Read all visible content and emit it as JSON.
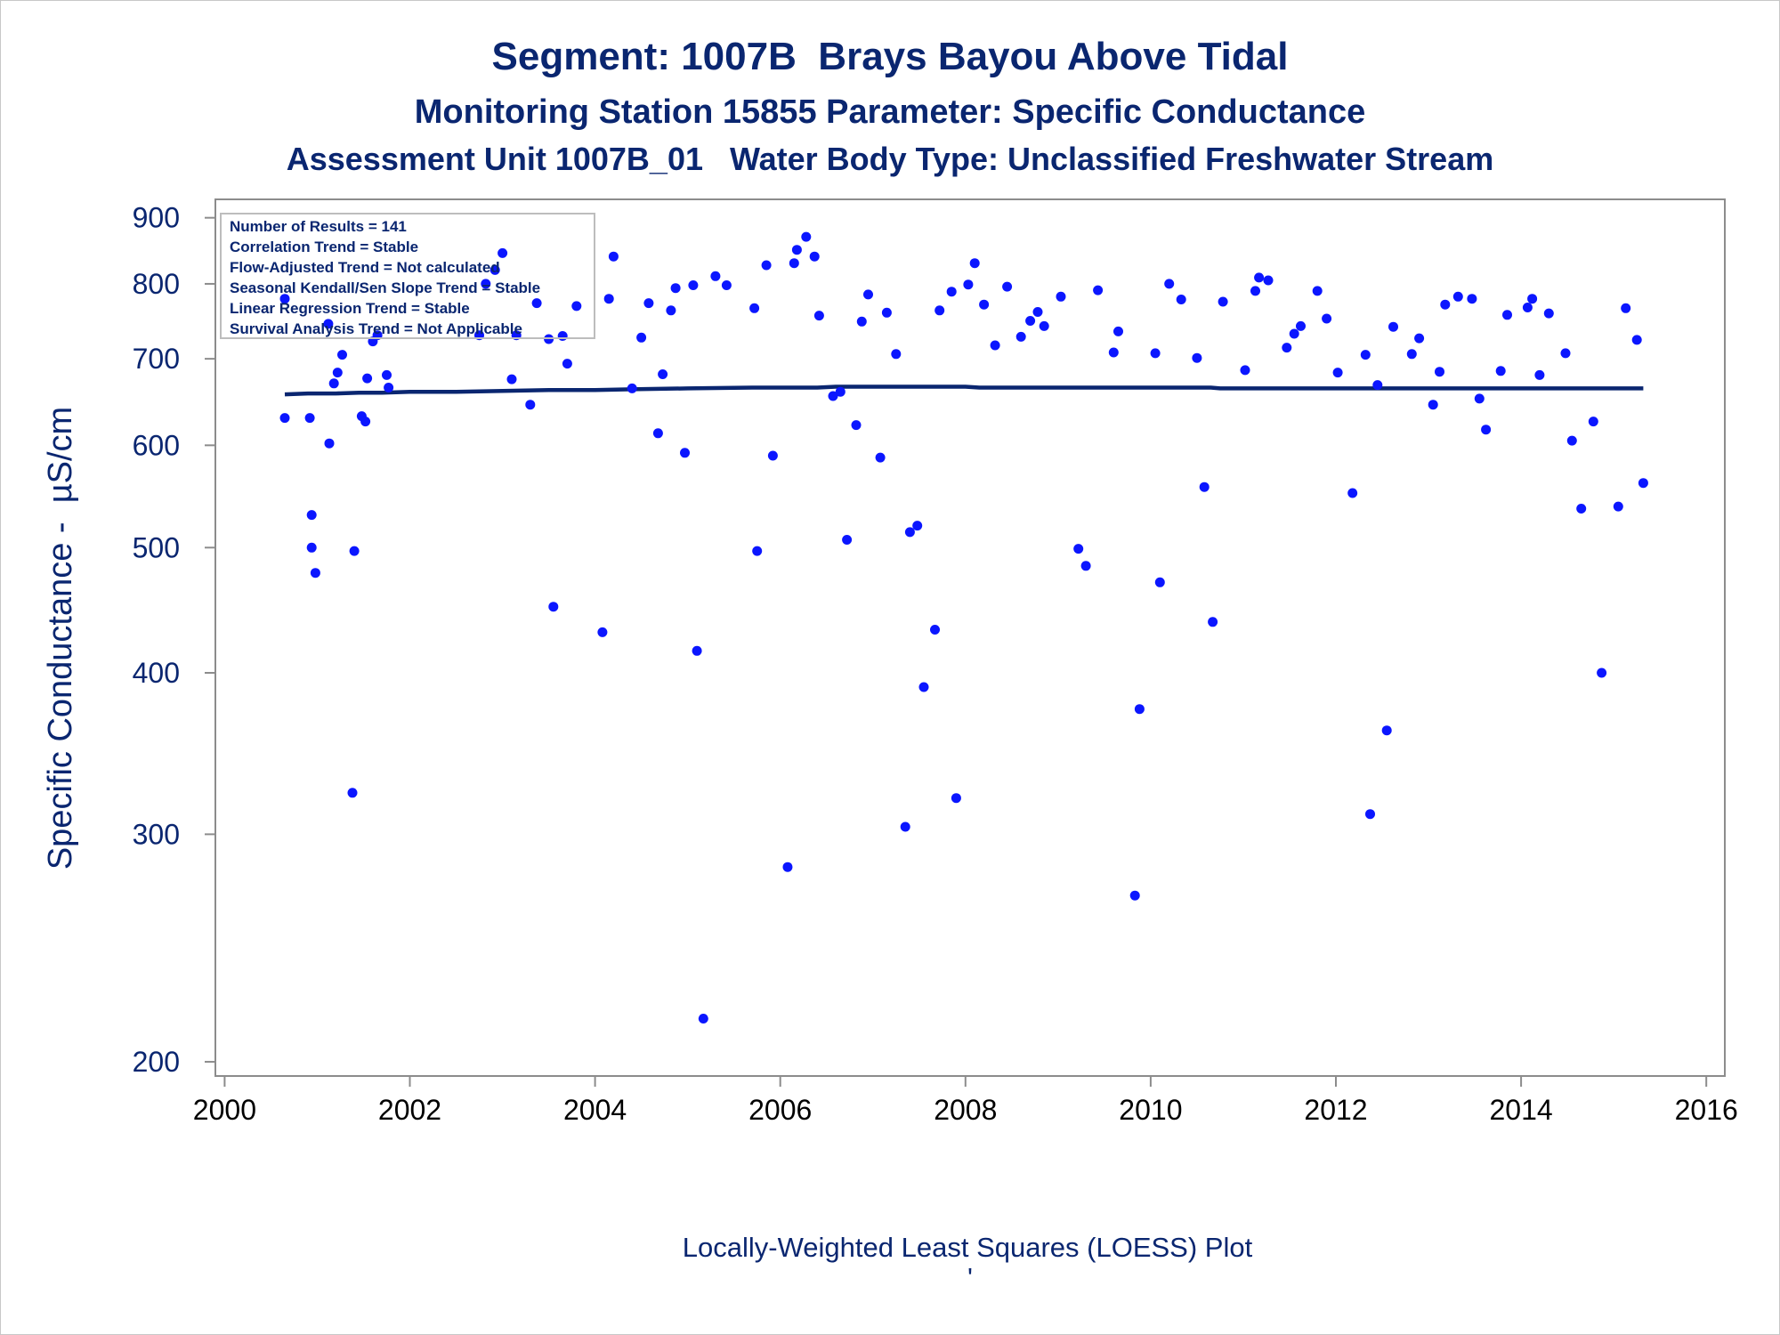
{
  "chart_data": {
    "type": "scatter",
    "title": "Segment: 1007B  Brays Bayou Above Tidal",
    "subtitle": "Monitoring Station 15855 Parameter: Specific Conductance",
    "subtitle2": "Assessment Unit 1007B_01   Water Body Type: Unclassified Freshwater Stream",
    "ylabel": "Specific Conductance -  µS/cm",
    "xlabel": "",
    "footnote": "Locally-Weighted Least Squares (LOESS) Plot",
    "footnote_mark": "'",
    "y_scale": "log",
    "ylim": [
      195,
      930
    ],
    "xlim": [
      1999.9,
      2016.2
    ],
    "y_ticks": [
      200,
      300,
      400,
      500,
      600,
      700,
      800,
      900
    ],
    "x_ticks": [
      2000,
      2002,
      2004,
      2006,
      2008,
      2010,
      2012,
      2014,
      2016
    ],
    "grid": false,
    "colors": {
      "points": "#0b16ff",
      "trend": "#0a2670",
      "text": "#0a2670"
    },
    "stats_box": {
      "placement": "top-left",
      "lines": [
        "Number of Results = 141",
        "Correlation Trend = Stable",
        "Flow-Adjusted Trend = Not calculated",
        "Seasonal Kendall/Sen Slope Trend = Stable",
        "Linear Regression Trend = Stable",
        "Survival Analysis Trend = Not Applicable"
      ]
    },
    "series": [
      {
        "type": "scatter",
        "points": [
          [
            2000.65,
            779
          ],
          [
            2000.65,
            630
          ],
          [
            2000.92,
            630
          ],
          [
            2000.94,
            530
          ],
          [
            2000.94,
            500
          ],
          [
            2000.98,
            478
          ],
          [
            2001.12,
            745
          ],
          [
            2001.13,
            602
          ],
          [
            2001.18,
            670
          ],
          [
            2001.22,
            683
          ],
          [
            2001.27,
            705
          ],
          [
            2001.38,
            323
          ],
          [
            2001.4,
            497
          ],
          [
            2001.48,
            632
          ],
          [
            2001.52,
            626
          ],
          [
            2001.54,
            676
          ],
          [
            2001.6,
            722
          ],
          [
            2001.65,
            730
          ],
          [
            2001.75,
            680
          ],
          [
            2001.77,
            665
          ],
          [
            2002.75,
            730
          ],
          [
            2002.82,
            800
          ],
          [
            2002.92,
            820
          ],
          [
            2003.0,
            845
          ],
          [
            2003.1,
            675
          ],
          [
            2003.15,
            730
          ],
          [
            2003.3,
            645
          ],
          [
            2003.37,
            773
          ],
          [
            2003.5,
            725
          ],
          [
            2003.55,
            450
          ],
          [
            2003.65,
            729
          ],
          [
            2003.7,
            694
          ],
          [
            2003.8,
            769
          ],
          [
            2004.08,
            430
          ],
          [
            2004.15,
            779
          ],
          [
            2004.2,
            840
          ],
          [
            2004.4,
            664
          ],
          [
            2004.5,
            727
          ],
          [
            2004.58,
            773
          ],
          [
            2004.68,
            613
          ],
          [
            2004.73,
            681
          ],
          [
            2004.82,
            763
          ],
          [
            2004.87,
            794
          ],
          [
            2004.97,
            592
          ],
          [
            2005.06,
            798
          ],
          [
            2005.1,
            416
          ],
          [
            2005.17,
            216
          ],
          [
            2005.3,
            811
          ],
          [
            2005.42,
            798
          ],
          [
            2005.72,
            766
          ],
          [
            2005.75,
            497
          ],
          [
            2005.85,
            827
          ],
          [
            2005.92,
            589
          ],
          [
            2006.08,
            283
          ],
          [
            2006.15,
            830
          ],
          [
            2006.18,
            850
          ],
          [
            2006.28,
            870
          ],
          [
            2006.37,
            840
          ],
          [
            2006.42,
            756
          ],
          [
            2006.57,
            655
          ],
          [
            2006.65,
            660
          ],
          [
            2006.72,
            507
          ],
          [
            2006.82,
            622
          ],
          [
            2006.88,
            748
          ],
          [
            2006.95,
            785
          ],
          [
            2007.08,
            587
          ],
          [
            2007.15,
            760
          ],
          [
            2007.25,
            706
          ],
          [
            2007.35,
            304
          ],
          [
            2007.4,
            514
          ],
          [
            2007.48,
            520
          ],
          [
            2007.55,
            390
          ],
          [
            2007.67,
            432
          ],
          [
            2007.72,
            763
          ],
          [
            2007.85,
            789
          ],
          [
            2007.9,
            320
          ],
          [
            2008.03,
            799
          ],
          [
            2008.1,
            830
          ],
          [
            2008.2,
            771
          ],
          [
            2008.32,
            717
          ],
          [
            2008.45,
            796
          ],
          [
            2008.6,
            728
          ],
          [
            2008.7,
            749
          ],
          [
            2008.78,
            761
          ],
          [
            2008.85,
            742
          ],
          [
            2009.03,
            782
          ],
          [
            2009.22,
            499
          ],
          [
            2009.3,
            484
          ],
          [
            2009.43,
            791
          ],
          [
            2009.6,
            708
          ],
          [
            2009.65,
            735
          ],
          [
            2009.83,
            269
          ],
          [
            2009.88,
            375
          ],
          [
            2010.05,
            707
          ],
          [
            2010.1,
            470
          ],
          [
            2010.2,
            800
          ],
          [
            2010.33,
            778
          ],
          [
            2010.5,
            701
          ],
          [
            2010.58,
            557
          ],
          [
            2010.67,
            438
          ],
          [
            2010.78,
            775
          ],
          [
            2011.02,
            686
          ],
          [
            2011.13,
            790
          ],
          [
            2011.17,
            809
          ],
          [
            2011.27,
            805
          ],
          [
            2011.47,
            714
          ],
          [
            2011.55,
            732
          ],
          [
            2011.62,
            742
          ],
          [
            2011.8,
            790
          ],
          [
            2011.9,
            752
          ],
          [
            2012.02,
            683
          ],
          [
            2012.18,
            551
          ],
          [
            2012.32,
            705
          ],
          [
            2012.37,
            311
          ],
          [
            2012.45,
            668
          ],
          [
            2012.55,
            361
          ],
          [
            2012.62,
            741
          ],
          [
            2012.82,
            706
          ],
          [
            2012.9,
            726
          ],
          [
            2013.05,
            645
          ],
          [
            2013.12,
            684
          ],
          [
            2013.18,
            771
          ],
          [
            2013.32,
            782
          ],
          [
            2013.47,
            779
          ],
          [
            2013.55,
            652
          ],
          [
            2013.62,
            617
          ],
          [
            2013.78,
            685
          ],
          [
            2013.85,
            757
          ],
          [
            2014.07,
            767
          ],
          [
            2014.12,
            779
          ],
          [
            2014.2,
            680
          ],
          [
            2014.3,
            759
          ],
          [
            2014.48,
            707
          ],
          [
            2014.55,
            605
          ],
          [
            2014.65,
            536
          ],
          [
            2014.78,
            626
          ],
          [
            2014.87,
            400
          ],
          [
            2015.05,
            538
          ],
          [
            2015.13,
            766
          ],
          [
            2015.25,
            724
          ],
          [
            2015.32,
            561
          ]
        ]
      },
      {
        "type": "line",
        "name": "",
        "points": [
          [
            2000.65,
            657
          ],
          [
            2000.9,
            658
          ],
          [
            2001.2,
            658
          ],
          [
            2001.45,
            659
          ],
          [
            2001.7,
            659
          ],
          [
            2002.0,
            660
          ],
          [
            2002.5,
            660
          ],
          [
            2003.0,
            661
          ],
          [
            2003.5,
            662
          ],
          [
            2004.0,
            662
          ],
          [
            2004.4,
            663
          ],
          [
            2005.0,
            664
          ],
          [
            2005.7,
            665
          ],
          [
            2006.4,
            665
          ],
          [
            2006.6,
            666
          ],
          [
            2007.0,
            666
          ],
          [
            2007.5,
            666
          ],
          [
            2008.0,
            666
          ],
          [
            2008.15,
            665
          ],
          [
            2009.0,
            665
          ],
          [
            2010.0,
            665
          ],
          [
            2010.65,
            665
          ],
          [
            2010.75,
            664
          ],
          [
            2011.5,
            664
          ],
          [
            2012.5,
            664
          ],
          [
            2013.5,
            664
          ],
          [
            2014.5,
            664
          ],
          [
            2015.32,
            664
          ]
        ]
      }
    ]
  }
}
